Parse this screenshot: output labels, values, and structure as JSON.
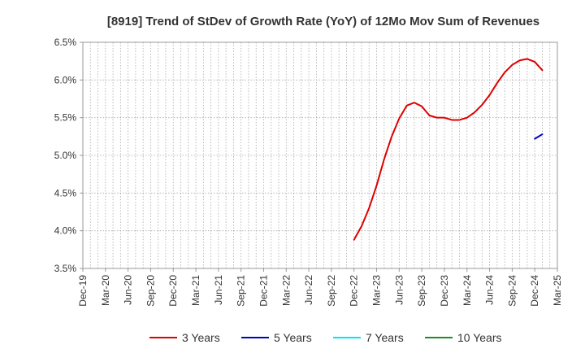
{
  "chart_data": {
    "type": "line",
    "title": "[8919]  Trend of StDev of Growth Rate (YoY) of 12Mo Mov Sum of Revenues",
    "xlabel": "",
    "ylabel": "",
    "ylim": [
      3.5,
      6.5
    ],
    "y_ticks": [
      3.5,
      4.0,
      4.5,
      5.0,
      5.5,
      6.0,
      6.5
    ],
    "y_tick_labels": [
      "3.5%",
      "4.0%",
      "4.5%",
      "5.0%",
      "5.5%",
      "6.0%",
      "6.5%"
    ],
    "x_tick_labels": [
      "Dec-19",
      "Mar-20",
      "Jun-20",
      "Sep-20",
      "Dec-20",
      "Mar-21",
      "Jun-21",
      "Sep-21",
      "Dec-21",
      "Mar-22",
      "Jun-22",
      "Sep-22",
      "Dec-22",
      "Mar-23",
      "Jun-23",
      "Sep-23",
      "Dec-23",
      "Mar-24",
      "Jun-24",
      "Sep-24",
      "Dec-24",
      "Mar-25"
    ],
    "x_start": "2019-12",
    "months_total": 63,
    "grid": true,
    "legend_position": "bottom",
    "series": [
      {
        "name": "3 Years",
        "color": "#dd0000",
        "start_month": 36,
        "values": [
          3.88,
          4.06,
          4.3,
          4.6,
          4.95,
          5.25,
          5.49,
          5.66,
          5.7,
          5.65,
          5.53,
          5.5,
          5.5,
          5.47,
          5.47,
          5.5,
          5.57,
          5.67,
          5.8,
          5.96,
          6.1,
          6.2,
          6.26,
          6.28,
          6.24,
          6.13
        ]
      },
      {
        "name": "5 Years",
        "color": "#0000cc",
        "start_month": 60,
        "values": [
          5.22,
          5.28
        ]
      },
      {
        "name": "7 Years",
        "color": "#00e5ee",
        "start_month": 0,
        "values": []
      },
      {
        "name": "10 Years",
        "color": "#228b22",
        "start_month": 0,
        "values": []
      }
    ]
  }
}
